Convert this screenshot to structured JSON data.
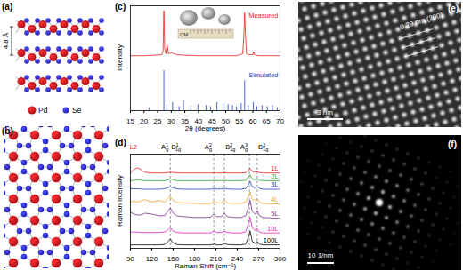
{
  "chart_data": [
    {
      "panel": "(c)",
      "type": "line",
      "x_label": "2θ (degrees)",
      "y_label": "Intensity",
      "xlim": [
        15,
        70
      ],
      "xticks": [
        15,
        20,
        25,
        30,
        35,
        40,
        45,
        50,
        55,
        60,
        65,
        70
      ],
      "ylim": [
        0,
        105
      ],
      "tick_labels": "x",
      "legend": "right",
      "inset_label": "CM",
      "series": [
        {
          "name": "Measured",
          "color": "#e8201c",
          "type": "line",
          "x": [
            15,
            20,
            24,
            26.5,
            27.0,
            27.3,
            27.6,
            28.0,
            28.5,
            29.0,
            30.0,
            32,
            35,
            40,
            45,
            50,
            54,
            56.3,
            56.7,
            57.0,
            57.3,
            57.7,
            58.5,
            60,
            60.3,
            60.6,
            62,
            65,
            70
          ],
          "values": [
            55,
            55,
            55.5,
            56,
            60,
            100,
            62,
            57,
            66,
            57,
            58,
            56,
            55.5,
            55,
            55,
            55,
            55,
            57,
            75,
            98,
            75,
            57,
            56,
            56,
            59,
            56,
            55,
            55,
            55
          ]
        },
        {
          "name": "Simulated",
          "color": "#1c3ccc",
          "type": "bar",
          "x": [
            21.8,
            27.3,
            28.4,
            30.5,
            32.9,
            34.5,
            37.2,
            39.8,
            42.8,
            44.5,
            46.8,
            49.1,
            50.9,
            52.5,
            54.0,
            55.7,
            57.0,
            58.3,
            60.2,
            61.5,
            63.4,
            65.3,
            67.2,
            69.0
          ],
          "values": [
            3,
            40,
            6,
            8,
            4,
            10,
            4,
            6,
            5,
            4,
            8,
            7,
            6,
            5,
            4,
            7,
            30,
            5,
            8,
            4,
            5,
            4,
            5,
            3
          ]
        }
      ]
    },
    {
      "panel": "(d)",
      "type": "line",
      "x_label": "Raman Shift (cm⁻¹)",
      "y_label": "Raman Intensity",
      "xlim": [
        90,
        300
      ],
      "xticks": [
        90,
        120,
        150,
        180,
        210,
        240,
        270,
        300
      ],
      "ylim": [
        0,
        110
      ],
      "tick_labels": "x",
      "legend": "right",
      "x": [
        90,
        95,
        100,
        105,
        110,
        120,
        130,
        138,
        143,
        146,
        150,
        155,
        165,
        180,
        195,
        203,
        207,
        211,
        218,
        222,
        226,
        235,
        245,
        252,
        256,
        258,
        261,
        265,
        268,
        271,
        276,
        285,
        300
      ],
      "series": [
        {
          "name": "1L",
          "color": "#e8201c",
          "values": [
            88,
            92,
            94,
            92,
            89,
            88,
            88,
            88,
            88.5,
            89,
            88.5,
            88,
            88,
            88,
            88,
            88,
            88,
            88,
            88,
            88.5,
            88,
            88,
            88,
            88.5,
            92,
            93,
            90,
            89,
            89.5,
            88.5,
            88,
            88,
            88
          ]
        },
        {
          "name": "2L",
          "color": "#2ca02c",
          "values": [
            79,
            79.5,
            80,
            79.5,
            79,
            79,
            79,
            79,
            80,
            81,
            80,
            79,
            79,
            79,
            79,
            79,
            79.5,
            79,
            79,
            79.5,
            79,
            79,
            79,
            79.5,
            84,
            86,
            81,
            80,
            81,
            79.5,
            79,
            79,
            79
          ]
        },
        {
          "name": "3L",
          "color": "#1f3fbf",
          "values": [
            69.5,
            69.5,
            69.5,
            69.3,
            69,
            69,
            69,
            69.5,
            71,
            72,
            70.5,
            69.5,
            69,
            69,
            69,
            69,
            70,
            69.3,
            69.3,
            70,
            69.3,
            69,
            69,
            70,
            75,
            78,
            72,
            70.5,
            72,
            70,
            69,
            69,
            69
          ]
        },
        {
          "name": "4L",
          "color": "#e8a020",
          "values": [
            54,
            55,
            54,
            55,
            57,
            54,
            56,
            54,
            59,
            60,
            56,
            53.5,
            53,
            52.5,
            52,
            52.5,
            55,
            53,
            53,
            56,
            53,
            52.5,
            52.5,
            54,
            62,
            66,
            57,
            56,
            58,
            54,
            52.5,
            52,
            52
          ]
        },
        {
          "name": "5L",
          "color": "#7b2d8e",
          "values": [
            42,
            40,
            39,
            39,
            41,
            40,
            38,
            38,
            44,
            47,
            41,
            38,
            37,
            36,
            36,
            36.5,
            40,
            37,
            37,
            41,
            37,
            36,
            36,
            38,
            50,
            56,
            43,
            40,
            44,
            38,
            36,
            35.5,
            35
          ]
        },
        {
          "name": "10L",
          "color": "#e020c0",
          "values": [
            19,
            19,
            19,
            18.5,
            18.5,
            18.5,
            18.5,
            19,
            22,
            24,
            20,
            18.5,
            18,
            18,
            18,
            18,
            20,
            18.5,
            18.5,
            20,
            18.5,
            18,
            18,
            19.5,
            30,
            36,
            24,
            21,
            23,
            19,
            18,
            18,
            18
          ]
        },
        {
          "name": "100L",
          "color": "#000000",
          "values": [
            4,
            4,
            4,
            4,
            4,
            4,
            4,
            4.5,
            8,
            11,
            6,
            4.5,
            4,
            4,
            4,
            4,
            5,
            4,
            4,
            6,
            4.5,
            4,
            4,
            5,
            14,
            20,
            8,
            6,
            8,
            5,
            4,
            4,
            4
          ]
        }
      ],
      "reference_lines": {
        "x": [
          146,
          207,
          222,
          257,
          268
        ],
        "line_style": "dashed"
      },
      "annotations": [
        {
          "x": 100,
          "text": "L2",
          "color": "#e8201c"
        },
        {
          "x": 144,
          "text": "A",
          "sup": "1",
          "sub": "g"
        },
        {
          "x": 148,
          "text": "B",
          "sup": "1",
          "sub": "1g"
        },
        {
          "x": 205,
          "text": "A",
          "sup": "2",
          "sub": "g"
        },
        {
          "x": 224,
          "text": "B",
          "sup": "2",
          "sub": "1g"
        },
        {
          "x": 255,
          "text": "A",
          "sup": "3",
          "sub": "g"
        },
        {
          "x": 270,
          "text": "B",
          "sup": "3",
          "sub": "1g"
        }
      ]
    }
  ],
  "figures": [
    {
      "panel": "(a)",
      "spacing_label": "4.8 Å",
      "atoms": [
        {
          "name": "Pd",
          "color": "#d7191c"
        },
        {
          "name": "Se",
          "color": "#2b2bd9"
        }
      ]
    },
    {
      "panel": "(b)"
    },
    {
      "panel": "(e)",
      "annotation": "0.29 nm (200)",
      "scale_bar": "3 nm"
    },
    {
      "panel": "(f)",
      "scale_bar": "10 1/nm"
    }
  ]
}
